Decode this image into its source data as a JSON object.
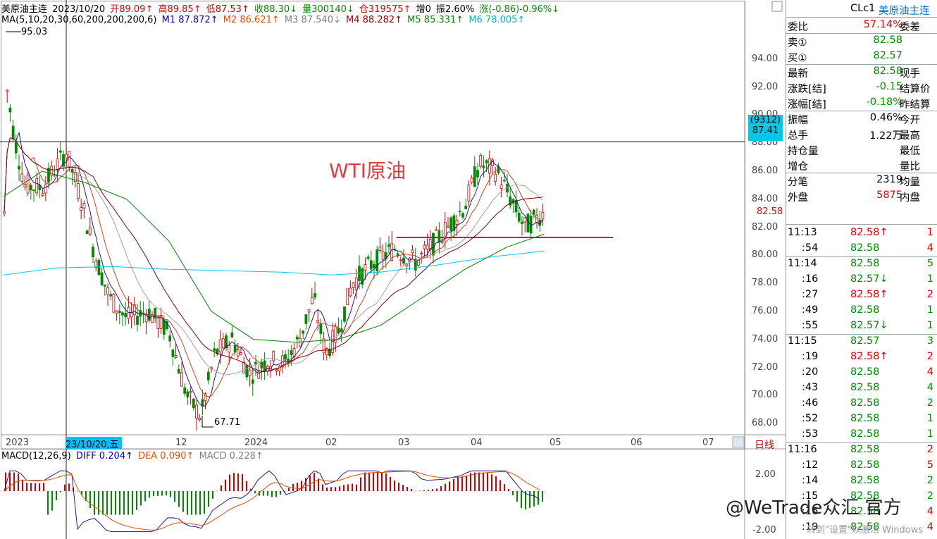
{
  "header": {
    "name": "美原油主连",
    "date": "2023/10/20",
    "open": "开89.09↑",
    "high": "高89.85↑",
    "low": "低87.53↑",
    "close": "收88.30↓",
    "volume": "量300140↓",
    "oi": "仓319575↑",
    "incr": "增0",
    "amplitude": "振2.60%",
    "change": "涨(-0.86)-0.96%↓"
  },
  "ma_bar": {
    "label": "MA(5,10,20,30,60,200,200,200,6)",
    "m1": "M1 87.872↑",
    "m2": "M2 86.621↑",
    "m3": "M3 87.540↓",
    "m4": "M4 88.282↑",
    "m5": "M5 85.331↑",
    "m6": "M6 78.005↑"
  },
  "macd_bar": {
    "label": "MACD(12,26,9)",
    "diff": "DIFF 0.204↑",
    "dea": "DEA 0.090↑",
    "macd": "MACD 0.228↑"
  },
  "chart_title": "WTI原油",
  "annotations": {
    "high_label": "95.03",
    "low_label": "67.71",
    "crosshair_date": "23/10/20,五",
    "crosshair_count": "(9312)",
    "crosshair_price": "87.41",
    "last_price": "82.58"
  },
  "price_axis": [
    "94.00",
    "92.00",
    "90.00",
    "88.00",
    "86.00",
    "84.00",
    "82.00",
    "80.00",
    "78.00",
    "76.00",
    "74.00",
    "72.00",
    "70.00",
    "68.00"
  ],
  "macd_axis": [
    "2.00",
    "-2.00"
  ],
  "date_axis": [
    "2023",
    "12",
    "2024",
    "02",
    "03",
    "04",
    "05",
    "06",
    "07"
  ],
  "period_label": "日线",
  "panel": {
    "symbol": "CLc1",
    "name": "美原油主连",
    "rows": [
      {
        "l": "委比",
        "v": "57.14%",
        "r": "委差",
        "vc": "red"
      },
      {
        "l": "卖①",
        "v": "82.58",
        "r": "",
        "vc": "green"
      },
      {
        "l": "买①",
        "v": "82.57",
        "r": "",
        "vc": "green"
      },
      {
        "l": "最新",
        "v": "82.58",
        "r": "现手",
        "vc": "green"
      },
      {
        "l": "涨跌[结]",
        "v": "-0.15",
        "r": "结算价",
        "vc": "green"
      },
      {
        "l": "涨幅[结]",
        "v": "-0.18%",
        "r": "昨结算",
        "vc": "green"
      },
      {
        "l": "振幅",
        "v": "0.46%",
        "r": "今开",
        "vc": "black"
      },
      {
        "l": "总手",
        "v": "1.22万",
        "r": "最高",
        "vc": "black"
      },
      {
        "l": "持仓量",
        "v": "",
        "r": "最低",
        "vc": "black"
      },
      {
        "l": "增仓",
        "v": "",
        "r": "量比",
        "vc": "black"
      },
      {
        "l": "分笔",
        "v": "2319",
        "r": "均量",
        "vc": "black"
      },
      {
        "l": "外盘",
        "v": "5875",
        "r": "内盘",
        "vc": "red"
      }
    ],
    "ticks": [
      {
        "t": "11:13",
        "p": "82.58↑",
        "v": "1",
        "pc": "red",
        "vcol": "red",
        "first": true
      },
      {
        "t": ":54",
        "p": "82.58",
        "v": "4",
        "pc": "green",
        "vcol": "red"
      },
      {
        "t": "11:14",
        "p": "82.58",
        "v": "5",
        "pc": "green",
        "vcol": "green",
        "first": true
      },
      {
        "t": ":16",
        "p": "82.57↓",
        "v": "1",
        "pc": "green",
        "vcol": "green"
      },
      {
        "t": ":27",
        "p": "82.58↑",
        "v": "2",
        "pc": "red",
        "vcol": "red"
      },
      {
        "t": ":49",
        "p": "82.58",
        "v": "1",
        "pc": "green",
        "vcol": "green"
      },
      {
        "t": ":55",
        "p": "82.57↓",
        "v": "1",
        "pc": "green",
        "vcol": "green"
      },
      {
        "t": "11:15",
        "p": "82.57",
        "v": "3",
        "pc": "green",
        "vcol": "green",
        "first": true
      },
      {
        "t": ":19",
        "p": "82.58↑",
        "v": "2",
        "pc": "red",
        "vcol": "red"
      },
      {
        "t": ":20",
        "p": "82.58",
        "v": "4",
        "pc": "green",
        "vcol": "red"
      },
      {
        "t": ":43",
        "p": "82.58",
        "v": "4",
        "pc": "green",
        "vcol": "green"
      },
      {
        "t": ":46",
        "p": "82.58",
        "v": "2",
        "pc": "green",
        "vcol": "green"
      },
      {
        "t": ":52",
        "p": "82.58",
        "v": "1",
        "pc": "green",
        "vcol": "green"
      },
      {
        "t": ":53",
        "p": "82.58",
        "v": "1",
        "pc": "green",
        "vcol": "green"
      },
      {
        "t": "11:16",
        "p": "82.58",
        "v": "2",
        "pc": "green",
        "vcol": "red",
        "first": true
      },
      {
        "t": ":12",
        "p": "82.58",
        "v": "5",
        "pc": "green",
        "vcol": "red"
      },
      {
        "t": ":14",
        "p": "82.58",
        "v": "2",
        "pc": "green",
        "vcol": "green"
      },
      {
        "t": ":15",
        "p": "82.58",
        "v": "2",
        "pc": "green",
        "vcol": "green"
      },
      {
        "t": ":16",
        "p": "82.58",
        "v": "4",
        "pc": "green",
        "vcol": "red"
      },
      {
        "t": ":19",
        "p": "82.58",
        "v": "4",
        "pc": "green",
        "vcol": "red"
      }
    ]
  },
  "watermark": "@WeTrade众汇 官方",
  "watermark_small": "转到\"设置\"以激活 Windows",
  "colors": {
    "up": "#d40000",
    "down": "#008a00",
    "m1": "#1a1a8c",
    "m2": "#d04020",
    "m3": "#a0a0a0",
    "m4": "#800000",
    "m5": "#008000",
    "m6": "#00c8e8",
    "support": "#e00000"
  },
  "chart_data": {
    "type": "candlestick",
    "title": "WTI原油",
    "ylim": [
      67,
      97
    ],
    "support_level": 80.8,
    "key_high": 95.03,
    "key_low": 67.71
  }
}
